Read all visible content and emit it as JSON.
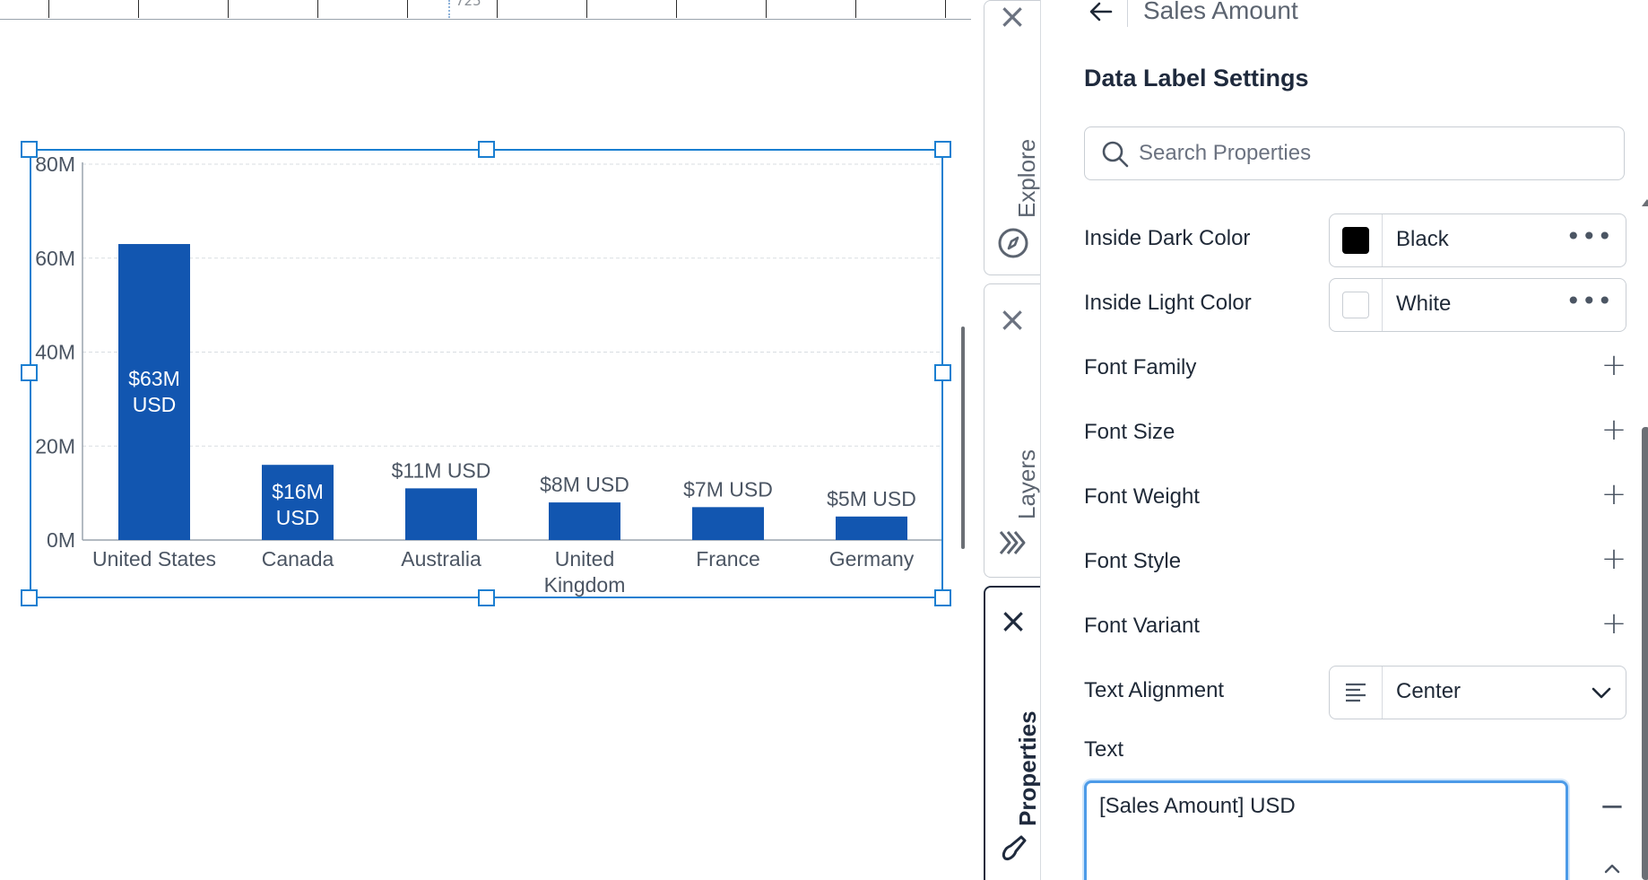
{
  "ruler": {
    "visible_fragment": "725"
  },
  "chart_data": {
    "type": "bar",
    "categories": [
      "United States",
      "Canada",
      "Australia",
      "United\nKingdom",
      "France",
      "Germany"
    ],
    "category_lines": [
      [
        "United States"
      ],
      [
        "Canada"
      ],
      [
        "Australia"
      ],
      [
        "United",
        "Kingdom"
      ],
      [
        "France"
      ],
      [
        "Germany"
      ]
    ],
    "values": [
      63,
      16,
      11,
      8,
      7,
      5
    ],
    "data_labels": [
      "$63M\nUSD",
      "$16M\nUSD",
      "$11M USD",
      "$8M USD",
      "$7M USD",
      "$5M USD"
    ],
    "data_label_lines": [
      [
        "$63M",
        "USD"
      ],
      [
        "$16M",
        "USD"
      ],
      [
        "$11M USD"
      ],
      [
        "$8M USD"
      ],
      [
        "$7M USD"
      ],
      [
        "$5M USD"
      ]
    ],
    "data_label_inside": [
      true,
      true,
      false,
      false,
      false,
      false
    ],
    "yticks": [
      "0M",
      "20M",
      "40M",
      "60M",
      "80M"
    ],
    "ytick_values": [
      0,
      20,
      40,
      60,
      80
    ],
    "ylim": [
      0,
      80
    ],
    "grid": true,
    "bar_color": "#1256b0",
    "title": "",
    "xlabel": "",
    "ylabel": ""
  },
  "side_tabs": [
    {
      "label": "Explore",
      "icon": "compass-icon",
      "active": false
    },
    {
      "label": "Layers",
      "icon": "layers-icon",
      "active": false
    },
    {
      "label": "Properties",
      "icon": "brush-icon",
      "active": true
    }
  ],
  "props": {
    "header_title": "Sales Amount",
    "section_title": "Data Label Settings",
    "search_placeholder": "Search Properties",
    "inside_dark": {
      "label": "Inside Dark Color",
      "value": "Black",
      "color": "#000000"
    },
    "inside_light": {
      "label": "Inside Light Color",
      "value": "White",
      "color": "#ffffff"
    },
    "plus_rows": [
      "Font Family",
      "Font Size",
      "Font Weight",
      "Font Style",
      "Font Variant"
    ],
    "text_alignment": {
      "label": "Text Alignment",
      "value": "Center"
    },
    "text": {
      "label": "Text",
      "value": "[Sales Amount] USD"
    }
  }
}
